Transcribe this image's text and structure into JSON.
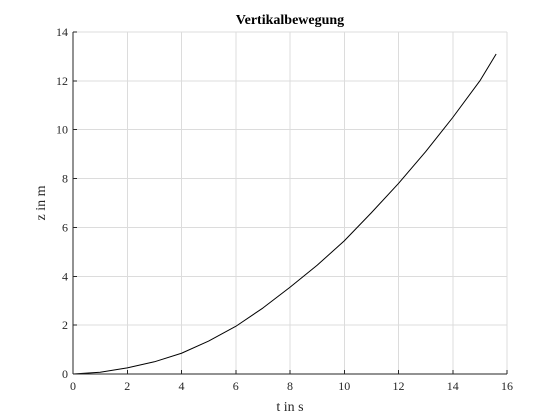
{
  "chart_data": {
    "type": "line",
    "title": "Vertikalbewegung",
    "xlabel": "t in s",
    "ylabel": "z in m",
    "xlim": [
      0,
      16
    ],
    "ylim": [
      0,
      14
    ],
    "xticks": [
      0,
      2,
      4,
      6,
      8,
      10,
      12,
      14,
      16
    ],
    "yticks": [
      0,
      2,
      4,
      6,
      8,
      10,
      12,
      14
    ],
    "grid": true,
    "series": [
      {
        "color": "#000000",
        "x": [
          0,
          1,
          2,
          3,
          4,
          5,
          6,
          7,
          8,
          9,
          10,
          11,
          12,
          13,
          14,
          15,
          15.6
        ],
        "y": [
          0,
          0.07,
          0.25,
          0.5,
          0.85,
          1.35,
          1.95,
          2.7,
          3.55,
          4.45,
          5.45,
          6.6,
          7.8,
          9.1,
          10.5,
          12.0,
          13.1
        ]
      }
    ]
  },
  "colors": {
    "grid": "#dcdcdc",
    "axes": "#262626",
    "line": "#000000",
    "background": "#ffffff"
  }
}
